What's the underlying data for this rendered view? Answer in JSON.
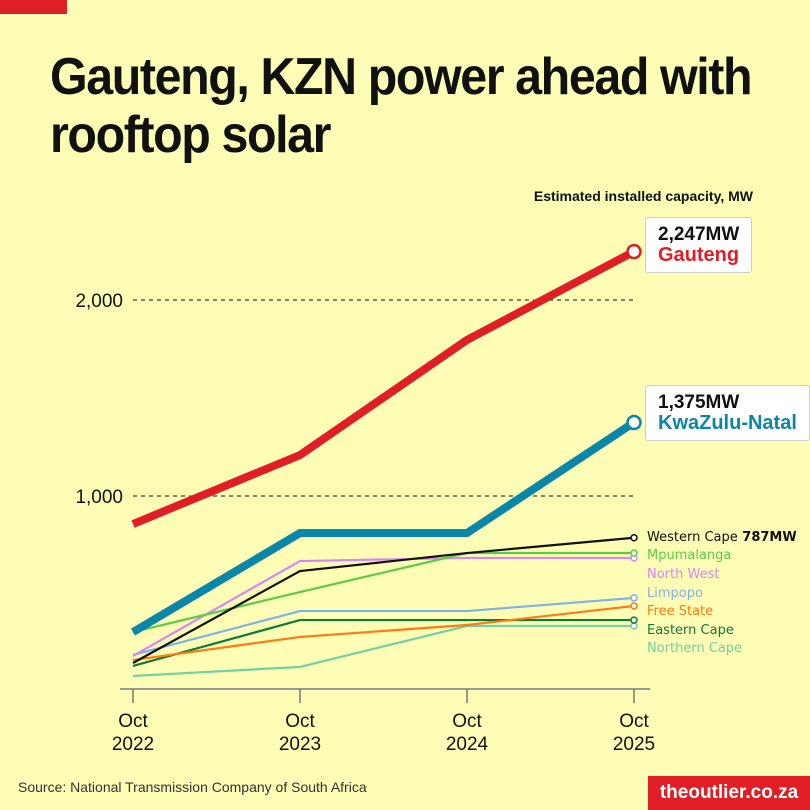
{
  "title": "Gauteng, KZN power ahead with rooftop solar",
  "source": "Source: National Transmission Company of South Africa",
  "brand": "theoutlier.co.za",
  "callouts": {
    "gauteng": {
      "value": "2,247MW",
      "name": "Gauteng"
    },
    "kzn": {
      "value": "1,375MW",
      "name": "KwaZulu-Natal"
    },
    "western_cape_value": "787MW"
  },
  "chart_data": {
    "type": "line",
    "title": "Estimated installed capacity, MW",
    "xlabel": "",
    "ylabel": "",
    "categories": [
      "Oct 2022",
      "Oct 2023",
      "Oct 2024",
      "Oct 2025"
    ],
    "category_lines": [
      [
        "Oct",
        "2022"
      ],
      [
        "Oct",
        "2023"
      ],
      [
        "Oct",
        "2024"
      ],
      [
        "Oct",
        "2025"
      ]
    ],
    "ylim": [
      0,
      2300
    ],
    "yticks": [
      {
        "value": 1000,
        "label": "1,000"
      },
      {
        "value": 2000,
        "label": "2,000"
      }
    ],
    "grid": "dashed horizontal at ticks",
    "series": [
      {
        "name": "Northern Cape",
        "color": "#6fd2a4",
        "values": [
          82,
          128,
          337,
          337
        ]
      },
      {
        "name": "Eastern Cape",
        "color": "#0d7a3c",
        "values": [
          133,
          367,
          367,
          367
        ]
      },
      {
        "name": "Free State",
        "color": "#ff7a10",
        "values": [
          163,
          281,
          342,
          439
        ]
      },
      {
        "name": "Limpopo",
        "color": "#7fb2e6",
        "values": [
          189,
          413,
          413,
          480
        ]
      },
      {
        "name": "North West",
        "color": "#d886f5",
        "values": [
          184,
          668,
          684,
          684
        ]
      },
      {
        "name": "Mpumalanga",
        "color": "#5acc48",
        "values": [
          306,
          510,
          709,
          709
        ]
      },
      {
        "name": "Western Cape",
        "color": "#111111",
        "values": [
          148,
          617,
          709,
          787
        ]
      },
      {
        "name": "KwaZulu-Natal",
        "color": "#0a86a8",
        "values": [
          306,
          811,
          811,
          1375
        ]
      },
      {
        "name": "Gauteng",
        "color": "#e01e25",
        "values": [
          857,
          1209,
          1796,
          2247
        ]
      }
    ]
  }
}
